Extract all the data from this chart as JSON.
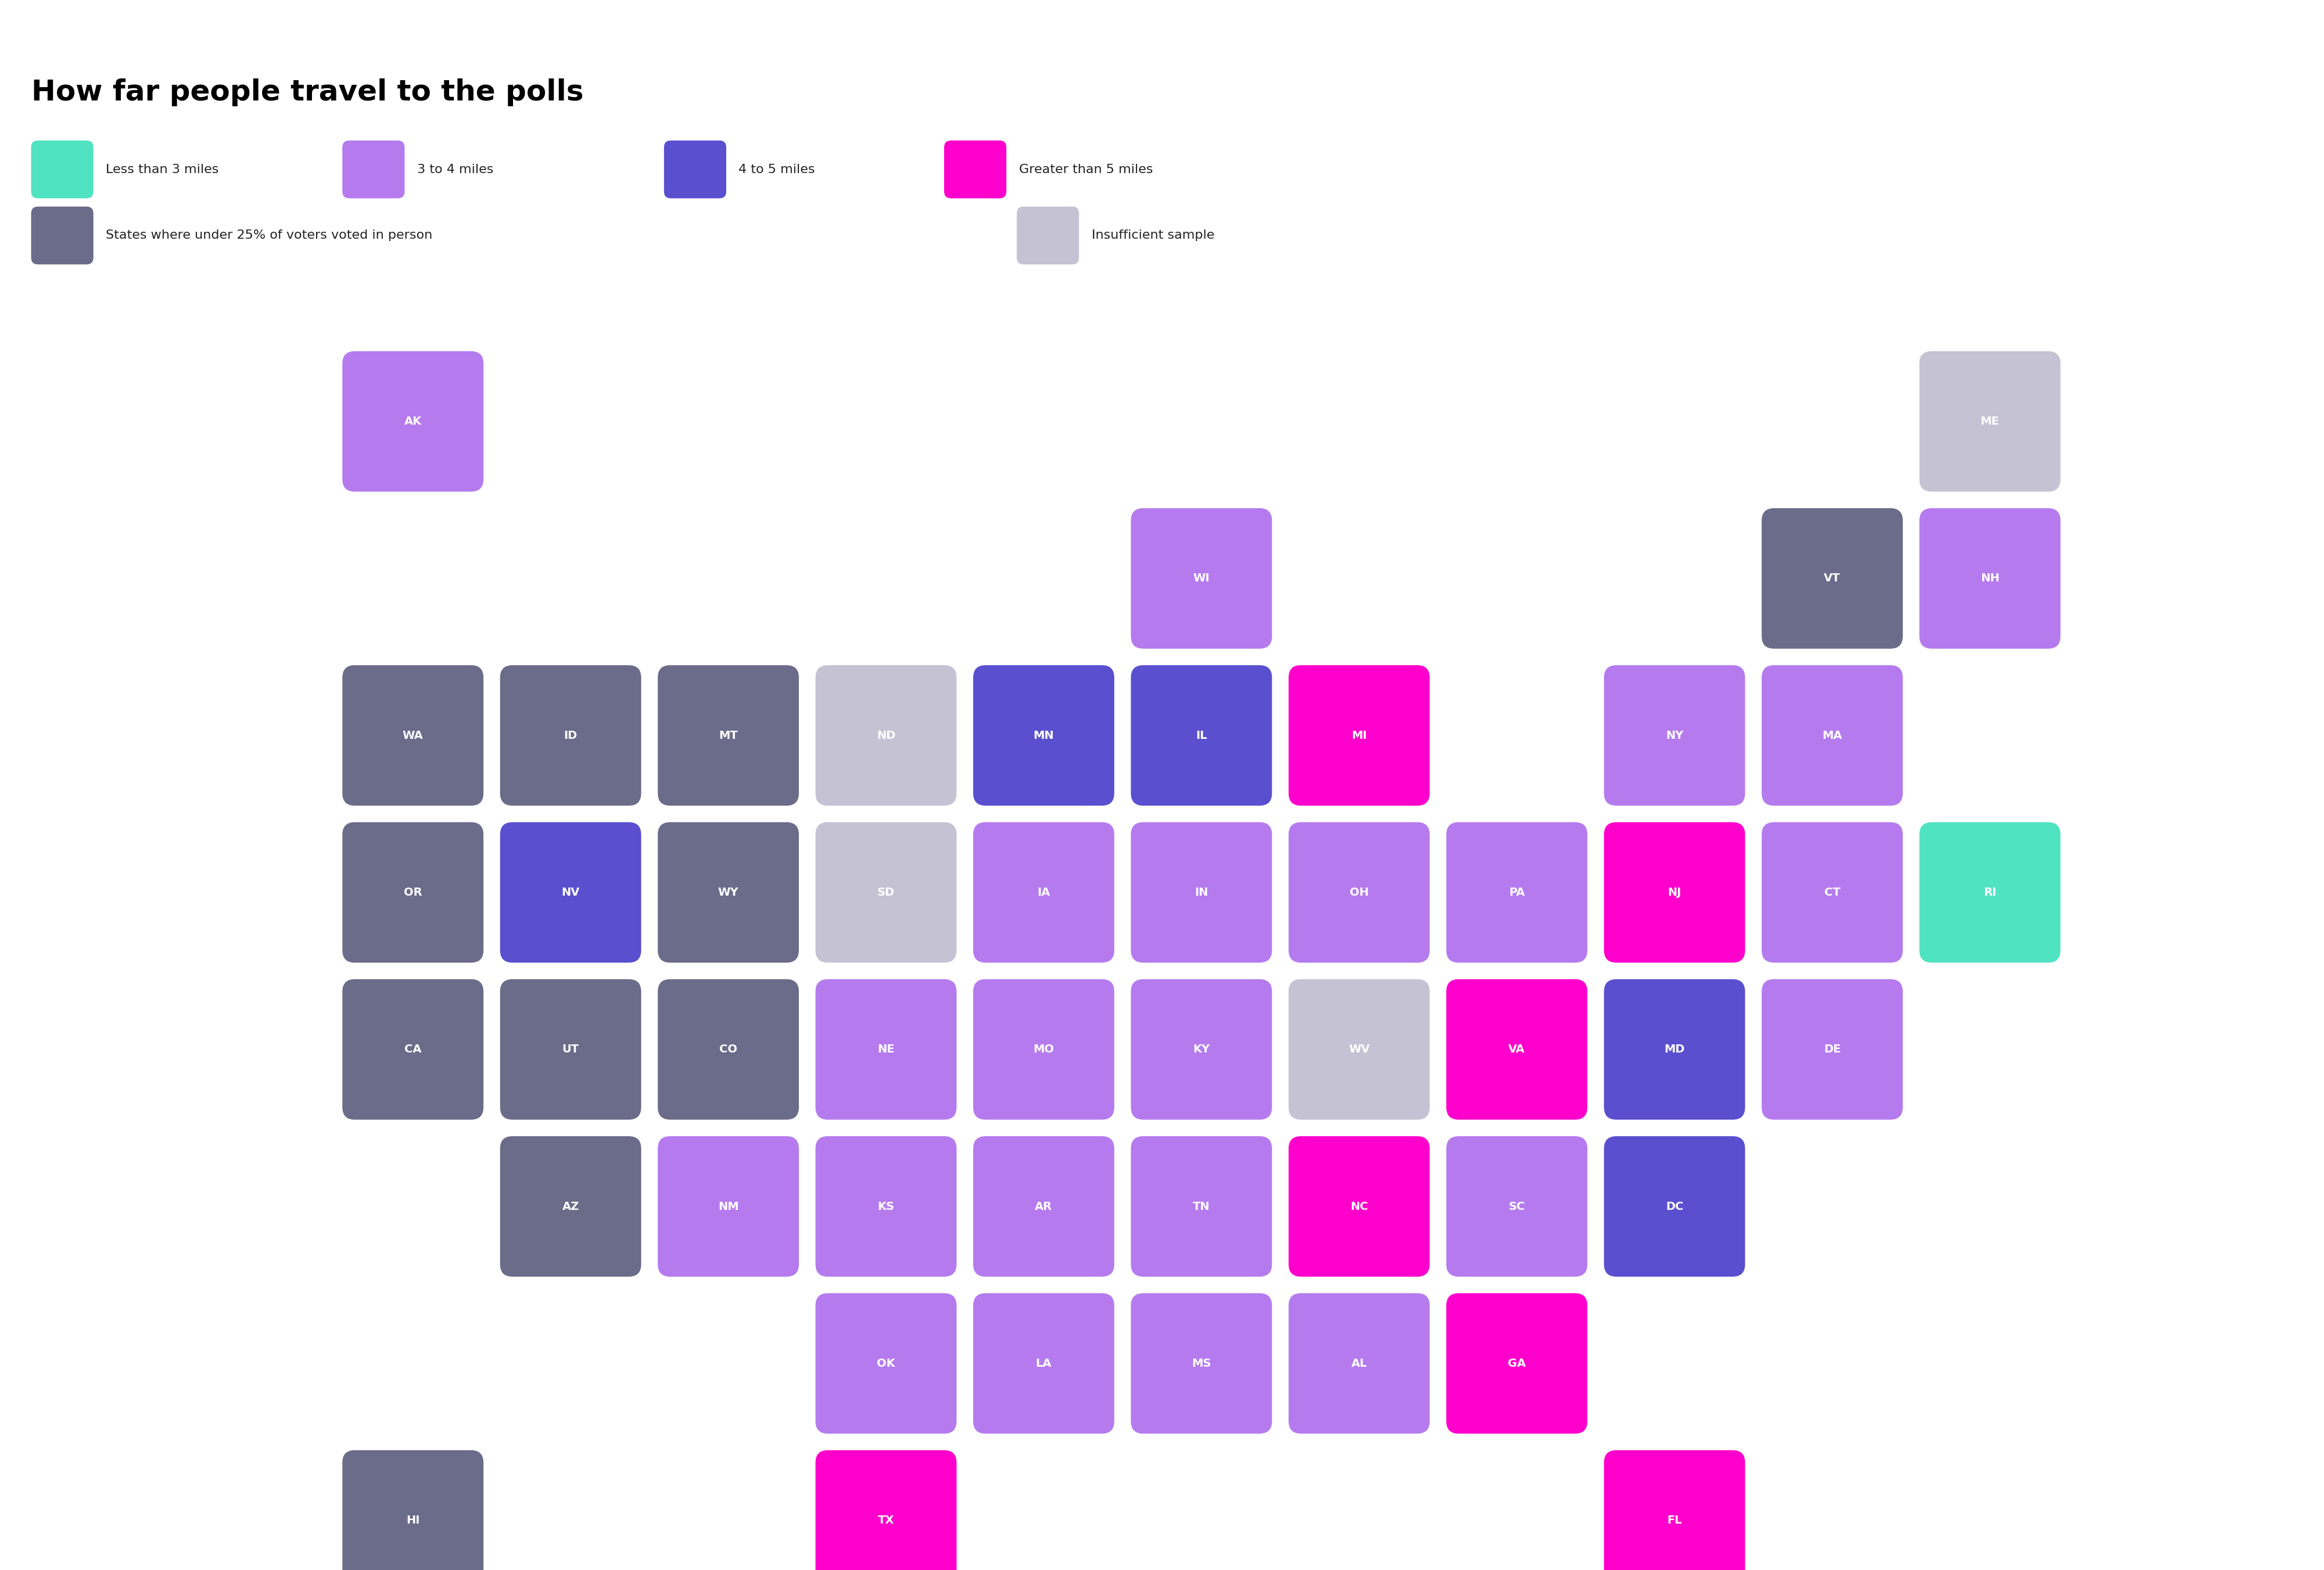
{
  "title": "How far people travel to the polls",
  "colors": {
    "less_than_3": "#50e3c2",
    "3_to_4": "#b57bee",
    "4_to_5": "#5a4fcf",
    "greater_5": "#ff00cc",
    "low_turnout": "#6b6b8a",
    "insufficient": "#c5c2d4",
    "white": "#ffffff"
  },
  "legend_row1": [
    {
      "label": "Less than 3 miles",
      "color": "#50e3c2"
    },
    {
      "label": "3 to 4 miles",
      "color": "#b57bee"
    },
    {
      "label": "4 to 5 miles",
      "color": "#5a4fcf"
    },
    {
      "label": "Greater than 5 miles",
      "color": "#ff00cc"
    }
  ],
  "legend_row2": [
    {
      "label": "States where under 25% of voters voted in person",
      "color": "#6b6b8a"
    },
    {
      "label": "Insufficient sample",
      "color": "#c5c2d4"
    }
  ],
  "states": [
    {
      "abbr": "AK",
      "col": 2,
      "row": 0,
      "color": "#b57bee"
    },
    {
      "abbr": "ME",
      "col": 12,
      "row": 0,
      "color": "#c5c2d4"
    },
    {
      "abbr": "WI",
      "col": 7,
      "row": 1,
      "color": "#b57bee"
    },
    {
      "abbr": "VT",
      "col": 11,
      "row": 1,
      "color": "#6b6b8a"
    },
    {
      "abbr": "NH",
      "col": 12,
      "row": 1,
      "color": "#b57bee"
    },
    {
      "abbr": "WA",
      "col": 2,
      "row": 2,
      "color": "#6b6b8a"
    },
    {
      "abbr": "ID",
      "col": 3,
      "row": 2,
      "color": "#6b6b8a"
    },
    {
      "abbr": "MT",
      "col": 4,
      "row": 2,
      "color": "#6b6b8a"
    },
    {
      "abbr": "ND",
      "col": 5,
      "row": 2,
      "color": "#c5c2d4"
    },
    {
      "abbr": "MN",
      "col": 6,
      "row": 2,
      "color": "#5a4fcf"
    },
    {
      "abbr": "IL",
      "col": 7,
      "row": 2,
      "color": "#5a4fcf"
    },
    {
      "abbr": "MI",
      "col": 8,
      "row": 2,
      "color": "#ff00cc"
    },
    {
      "abbr": "NY",
      "col": 10,
      "row": 2,
      "color": "#b57bee"
    },
    {
      "abbr": "MA",
      "col": 11,
      "row": 2,
      "color": "#b57bee"
    },
    {
      "abbr": "OR",
      "col": 2,
      "row": 3,
      "color": "#6b6b8a"
    },
    {
      "abbr": "NV",
      "col": 3,
      "row": 3,
      "color": "#5a4fcf"
    },
    {
      "abbr": "WY",
      "col": 4,
      "row": 3,
      "color": "#6b6b8a"
    },
    {
      "abbr": "SD",
      "col": 5,
      "row": 3,
      "color": "#c5c2d4"
    },
    {
      "abbr": "IA",
      "col": 6,
      "row": 3,
      "color": "#b57bee"
    },
    {
      "abbr": "IN",
      "col": 7,
      "row": 3,
      "color": "#b57bee"
    },
    {
      "abbr": "OH",
      "col": 8,
      "row": 3,
      "color": "#b57bee"
    },
    {
      "abbr": "PA",
      "col": 9,
      "row": 3,
      "color": "#b57bee"
    },
    {
      "abbr": "NJ",
      "col": 10,
      "row": 3,
      "color": "#ff00cc"
    },
    {
      "abbr": "CT",
      "col": 11,
      "row": 3,
      "color": "#b57bee"
    },
    {
      "abbr": "RI",
      "col": 12,
      "row": 3,
      "color": "#50e3c2"
    },
    {
      "abbr": "CA",
      "col": 2,
      "row": 4,
      "color": "#6b6b8a"
    },
    {
      "abbr": "UT",
      "col": 3,
      "row": 4,
      "color": "#6b6b8a"
    },
    {
      "abbr": "CO",
      "col": 4,
      "row": 4,
      "color": "#6b6b8a"
    },
    {
      "abbr": "NE",
      "col": 5,
      "row": 4,
      "color": "#b57bee"
    },
    {
      "abbr": "MO",
      "col": 6,
      "row": 4,
      "color": "#b57bee"
    },
    {
      "abbr": "KY",
      "col": 7,
      "row": 4,
      "color": "#b57bee"
    },
    {
      "abbr": "WV",
      "col": 8,
      "row": 4,
      "color": "#c5c2d4"
    },
    {
      "abbr": "VA",
      "col": 9,
      "row": 4,
      "color": "#ff00cc"
    },
    {
      "abbr": "MD",
      "col": 10,
      "row": 4,
      "color": "#5a4fcf"
    },
    {
      "abbr": "DE",
      "col": 11,
      "row": 4,
      "color": "#b57bee"
    },
    {
      "abbr": "AZ",
      "col": 3,
      "row": 5,
      "color": "#6b6b8a"
    },
    {
      "abbr": "NM",
      "col": 4,
      "row": 5,
      "color": "#b57bee"
    },
    {
      "abbr": "KS",
      "col": 5,
      "row": 5,
      "color": "#b57bee"
    },
    {
      "abbr": "AR",
      "col": 6,
      "row": 5,
      "color": "#b57bee"
    },
    {
      "abbr": "TN",
      "col": 7,
      "row": 5,
      "color": "#b57bee"
    },
    {
      "abbr": "NC",
      "col": 8,
      "row": 5,
      "color": "#ff00cc"
    },
    {
      "abbr": "SC",
      "col": 9,
      "row": 5,
      "color": "#b57bee"
    },
    {
      "abbr": "DC",
      "col": 10,
      "row": 5,
      "color": "#5a4fcf"
    },
    {
      "abbr": "OK",
      "col": 5,
      "row": 6,
      "color": "#b57bee"
    },
    {
      "abbr": "LA",
      "col": 6,
      "row": 6,
      "color": "#b57bee"
    },
    {
      "abbr": "MS",
      "col": 7,
      "row": 6,
      "color": "#b57bee"
    },
    {
      "abbr": "AL",
      "col": 8,
      "row": 6,
      "color": "#b57bee"
    },
    {
      "abbr": "GA",
      "col": 9,
      "row": 6,
      "color": "#ff00cc"
    },
    {
      "abbr": "HI",
      "col": 2,
      "row": 7,
      "color": "#6b6b8a"
    },
    {
      "abbr": "TX",
      "col": 5,
      "row": 7,
      "color": "#ff00cc"
    },
    {
      "abbr": "FL",
      "col": 10,
      "row": 7,
      "color": "#ff00cc"
    }
  ]
}
